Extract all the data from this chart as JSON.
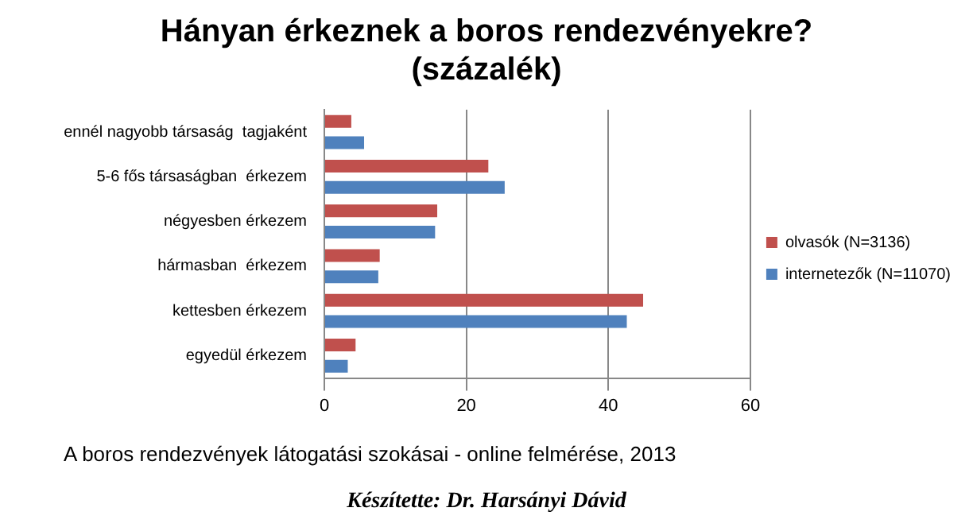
{
  "chart_data": {
    "type": "bar",
    "orientation": "horizontal",
    "title": "Hányan érkeznek a boros rendezvényekre?\n(százalék)",
    "categories": [
      "ennél nagyobb társaság  tagjaként",
      "5-6 fős társaságban  érkezem",
      "négyesben érkezem",
      "hármasban  érkezem",
      "kettesben érkezem",
      "egyedül érkezem"
    ],
    "series": [
      {
        "name": "olvasók (N=3136)",
        "color": "#c0504d",
        "values": [
          3.8,
          23.1,
          15.9,
          7.8,
          44.9,
          4.4
        ]
      },
      {
        "name": "internetezők (N=11070)",
        "color": "#4f81bd",
        "values": [
          5.6,
          25.4,
          15.6,
          7.6,
          42.6,
          3.3
        ]
      }
    ],
    "xlim": [
      0,
      60
    ],
    "xticks": [
      0,
      20,
      40,
      60
    ],
    "grid": "x",
    "legend": "right",
    "annotations": [
      "A boros rendezvények látogatási szokásai  - online felmérése, 2013",
      "Készítette: Dr. Harsányi Dávid"
    ]
  }
}
